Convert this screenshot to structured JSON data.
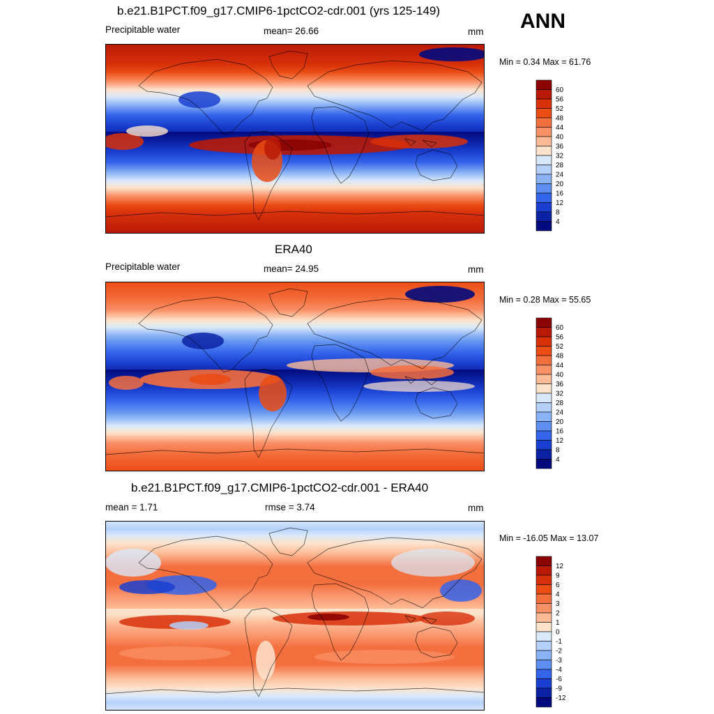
{
  "season": "ANN",
  "panels": [
    {
      "title": "b.e21.B1PCT.f09_g17.CMIP6-1pctCO2-cdr.001 (yrs 125-149)",
      "left_label": "Precipitable water",
      "center_label": "mean=  26.66",
      "units": "mm",
      "minmax": "Min =   0.34 Max =  61.76",
      "colorbar": {
        "labels": [
          "60",
          "56",
          "52",
          "48",
          "44",
          "40",
          "36",
          "32",
          "28",
          "24",
          "20",
          "16",
          "12",
          "8",
          "4"
        ],
        "colors": [
          "#8c0303",
          "#b81a07",
          "#d8300b",
          "#eb4d14",
          "#f46f3e",
          "#f99167",
          "#fcbb97",
          "#fde3cc",
          "#d9e9fb",
          "#b4d0f9",
          "#8ab2f5",
          "#5d8ef0",
          "#3464ea",
          "#1a3fd0",
          "#0b22a6",
          "#020a7d"
        ]
      },
      "map": "model"
    },
    {
      "title": "ERA40",
      "left_label": "Precipitable water",
      "center_label": "mean=  24.95",
      "units": "mm",
      "minmax": "Min =   0.28 Max =  55.65",
      "colorbar": {
        "labels": [
          "60",
          "56",
          "52",
          "48",
          "44",
          "40",
          "36",
          "32",
          "28",
          "24",
          "20",
          "16",
          "12",
          "8",
          "4"
        ],
        "colors": [
          "#8c0303",
          "#b81a07",
          "#d8300b",
          "#eb4d14",
          "#f46f3e",
          "#f99167",
          "#fcbb97",
          "#fde3cc",
          "#d9e9fb",
          "#b4d0f9",
          "#8ab2f5",
          "#5d8ef0",
          "#3464ea",
          "#1a3fd0",
          "#0b22a6",
          "#020a7d"
        ]
      },
      "map": "obs"
    },
    {
      "title": "b.e21.B1PCT.f09_g17.CMIP6-1pctCO2-cdr.001 - ERA40",
      "left_label": "mean =   1.71",
      "center_label": "rmse =   3.74",
      "units": "mm",
      "minmax": "Min = -16.05 Max =  13.07",
      "colorbar": {
        "labels": [
          "12",
          "9",
          "6",
          "4",
          "3",
          "2",
          "1",
          "0",
          "-1",
          "-2",
          "-3",
          "-4",
          "-6",
          "-9",
          "-12"
        ],
        "colors": [
          "#8c0303",
          "#b81a07",
          "#d8300b",
          "#eb4d14",
          "#f46f3e",
          "#f99167",
          "#fcbb97",
          "#fde3cc",
          "#d9e9fb",
          "#b4d0f9",
          "#8ab2f5",
          "#5d8ef0",
          "#3464ea",
          "#1a3fd0",
          "#0b22a6",
          "#020a7d"
        ]
      },
      "map": "diff"
    }
  ]
}
